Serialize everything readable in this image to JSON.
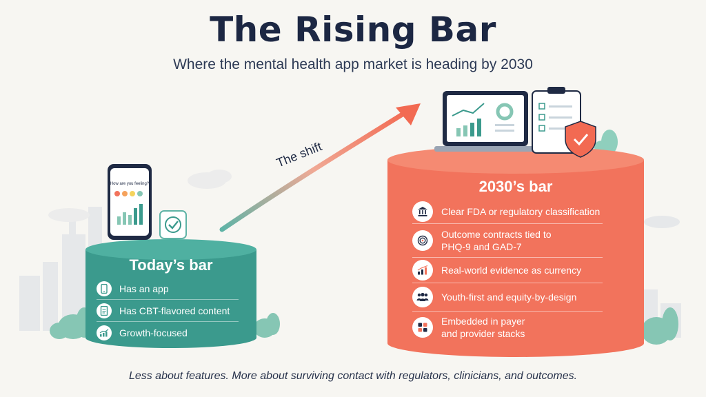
{
  "title": "The Rising Bar",
  "subtitle": "Where the mental health app market is heading by 2030",
  "arrow_label": "The shift",
  "phone_prompt": "How are you feeling?",
  "today": {
    "title": "Today’s bar",
    "items": [
      {
        "icon": "phone-icon",
        "label": "Has an app"
      },
      {
        "icon": "document-icon",
        "label": "Has CBT-flavored content"
      },
      {
        "icon": "growth-chart-icon",
        "label": "Growth-focused"
      }
    ]
  },
  "future": {
    "title": "2030’s bar",
    "items": [
      {
        "icon": "bank-icon",
        "lines": [
          "Clear FDA or regulatory classification"
        ]
      },
      {
        "icon": "target-icon",
        "lines": [
          "Outcome contracts tied to",
          "PHQ-9 and GAD-7"
        ]
      },
      {
        "icon": "bar-chart-icon",
        "lines": [
          "Real-world evidence as currency"
        ]
      },
      {
        "icon": "people-icon",
        "lines": [
          "Youth-first and equity-by-design"
        ]
      },
      {
        "icon": "stack-icon",
        "lines": [
          "Embedded in payer",
          "and provider stacks"
        ]
      }
    ]
  },
  "footer": "Less about features. More about surviving contact with regulators, clinicians, and outcomes.",
  "colors": {
    "today": "#3b9a8d",
    "today_top": "#4fb0a1",
    "future": "#f2735c",
    "future_top": "#f58a72",
    "text_dark": "#1c2743"
  }
}
